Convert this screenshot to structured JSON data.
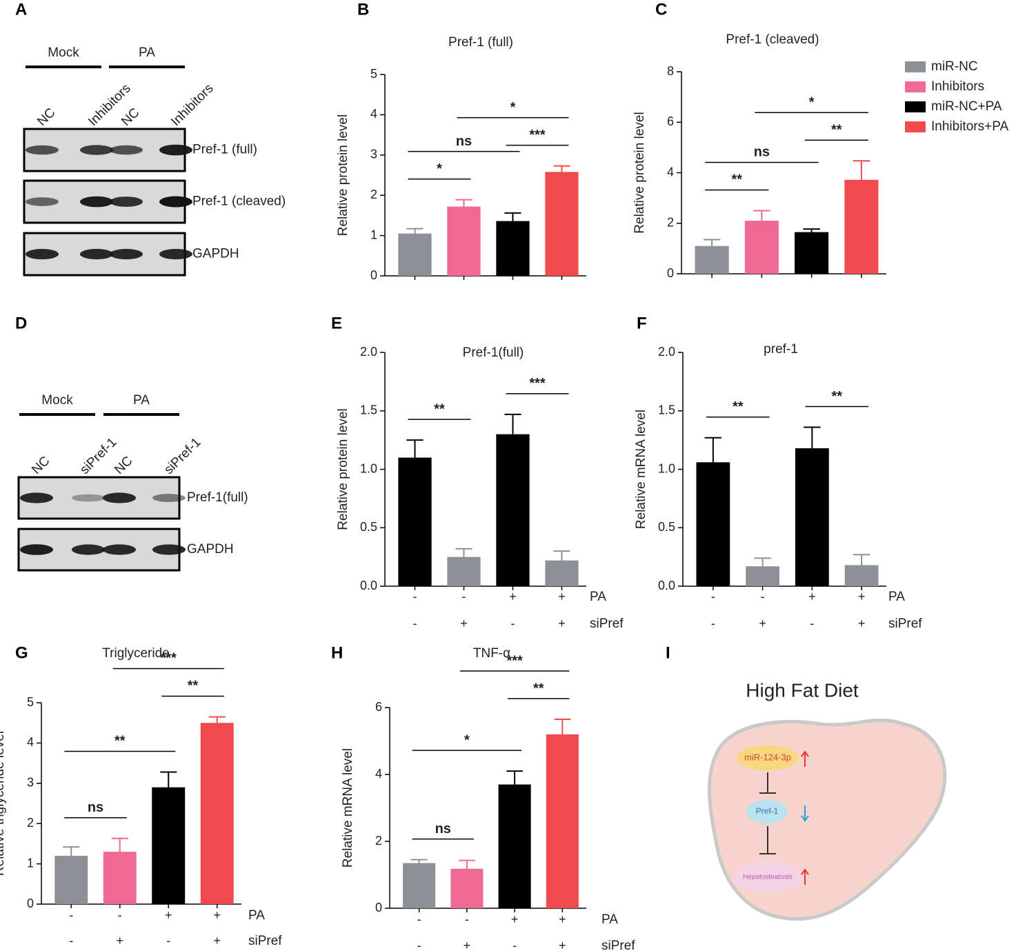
{
  "panels": [
    "A",
    "B",
    "C",
    "D",
    "E",
    "F",
    "G",
    "H",
    "I"
  ],
  "blots": [
    {
      "groups": [
        "Mock",
        "PA"
      ],
      "lanes": [
        "NC",
        "Inhibitors",
        "NC",
        "Inhibitors"
      ],
      "bands": [
        "Pref-1 (full)",
        "Pref-1 (cleaved)",
        "GAPDH"
      ]
    },
    {
      "groups": [
        "Mock",
        "PA"
      ],
      "lanes": [
        "NC",
        "siPref-1",
        "NC",
        "siPref-1"
      ],
      "bands": [
        "Pref-1(full)",
        "GAPDH"
      ]
    }
  ],
  "chart_data": [
    {
      "type": "bar",
      "title": "Pref-1 (full)",
      "ylabel": "Relative protein level",
      "categories": [
        null,
        null,
        null,
        null
      ],
      "values": [
        1.05,
        1.72,
        1.36,
        2.58
      ],
      "errors": [
        0.12,
        0.17,
        0.2,
        0.15
      ],
      "colors": [
        "#8e9097",
        "#ee6a93",
        "#000000",
        "#ef4b4f"
      ],
      "ylim": [
        0,
        5
      ],
      "yticks": [
        0,
        1,
        2,
        3,
        4,
        5
      ],
      "annotations": [
        {
          "text": "*",
          "bars": [
            0,
            1
          ]
        },
        {
          "text": "ns",
          "bars": [
            0,
            2
          ]
        },
        {
          "text": "***",
          "bars": [
            2,
            3
          ]
        },
        {
          "text": "*",
          "bars": [
            1,
            3
          ]
        }
      ]
    },
    {
      "type": "bar",
      "title": "Pref-1 (cleaved)",
      "ylabel": "Relative protein level",
      "categories": [
        null,
        null,
        null,
        null
      ],
      "values": [
        1.1,
        2.1,
        1.65,
        3.72
      ],
      "errors": [
        0.25,
        0.4,
        0.12,
        0.75
      ],
      "colors": [
        "#8e9097",
        "#ee6a93",
        "#000000",
        "#ef4b4f"
      ],
      "ylim": [
        0,
        8
      ],
      "yticks": [
        0,
        2,
        4,
        6,
        8
      ],
      "annotations": [
        {
          "text": "**",
          "bars": [
            0,
            1
          ]
        },
        {
          "text": "ns",
          "bars": [
            0,
            2
          ]
        },
        {
          "text": "**",
          "bars": [
            2,
            3
          ]
        },
        {
          "text": "*",
          "bars": [
            1,
            3
          ]
        }
      ],
      "legend": [
        {
          "name": "miR-NC",
          "color": "#8e9097"
        },
        {
          "name": "Inhibitors",
          "color": "#ee6a93"
        },
        {
          "name": "miR-NC+PA",
          "color": "#000000"
        },
        {
          "name": "Inhibitors+PA",
          "color": "#ef4b4f"
        }
      ]
    },
    {
      "type": "bar",
      "title": "Pref-1(full)",
      "ylabel": "Relative protein level",
      "categories": [
        null,
        null,
        null,
        null
      ],
      "values": [
        1.1,
        0.25,
        1.3,
        0.22
      ],
      "errors": [
        0.15,
        0.07,
        0.17,
        0.08
      ],
      "colors": [
        "#000000",
        "#8e9097",
        "#000000",
        "#8e9097"
      ],
      "ylim": [
        0,
        2
      ],
      "yticks": [
        {
          "value": 0,
          "label": "0.0"
        },
        0.5,
        {
          "value": 1,
          "label": "1.0"
        },
        1.5,
        {
          "value": 2,
          "label": "2.0"
        }
      ],
      "annotations": [
        {
          "text": "**",
          "bars": [
            0,
            1
          ]
        },
        {
          "text": "***",
          "bars": [
            2,
            3
          ]
        }
      ],
      "factors": [
        {
          "name": "PA",
          "levels": [
            "-",
            "-",
            "+",
            "+"
          ]
        },
        {
          "name": "siPref",
          "levels": [
            "-",
            "+",
            "-",
            "+"
          ]
        }
      ]
    },
    {
      "type": "bar",
      "title": "pref-1",
      "ylabel": "Relative mRNA level",
      "categories": [
        null,
        null,
        null,
        null
      ],
      "values": [
        1.06,
        0.17,
        1.18,
        0.18
      ],
      "errors": [
        0.21,
        0.07,
        0.18,
        0.09
      ],
      "colors": [
        "#000000",
        "#8e9097",
        "#000000",
        "#8e9097"
      ],
      "ylim": [
        0,
        2
      ],
      "yticks": [
        {
          "value": 0,
          "label": "0.0"
        },
        0.5,
        {
          "value": 1,
          "label": "1.0"
        },
        1.5,
        {
          "value": 2,
          "label": "2.0"
        }
      ],
      "annotations": [
        {
          "text": "**",
          "bars": [
            0,
            1
          ]
        },
        {
          "text": "**",
          "bars": [
            2,
            3
          ]
        }
      ],
      "factors": [
        {
          "name": "PA",
          "levels": [
            "-",
            "-",
            "+",
            "+"
          ]
        },
        {
          "name": "siPref",
          "levels": [
            "-",
            "+",
            "-",
            "+"
          ]
        }
      ]
    },
    {
      "type": "bar",
      "title": "Triglyceride",
      "ylabel": "Relative triglyceride level",
      "categories": [
        null,
        null,
        null,
        null
      ],
      "values": [
        1.2,
        1.3,
        2.9,
        4.5
      ],
      "errors": [
        0.22,
        0.33,
        0.38,
        0.15
      ],
      "colors": [
        "#8e9097",
        "#ee6a93",
        "#000000",
        "#ef4b4f"
      ],
      "ylim": [
        0,
        5
      ],
      "yticks": [
        0,
        1,
        2,
        3,
        4,
        5
      ],
      "annotations": [
        {
          "text": "ns",
          "bars": [
            0,
            1
          ]
        },
        {
          "text": "**",
          "bars": [
            0,
            2
          ]
        },
        {
          "text": "**",
          "bars": [
            2,
            3
          ]
        },
        {
          "text": "***",
          "bars": [
            1,
            3
          ]
        }
      ],
      "factors": [
        {
          "name": "PA",
          "levels": [
            "-",
            "-",
            "+",
            "+"
          ]
        },
        {
          "name": "siPref",
          "levels": [
            "-",
            "+",
            "-",
            "+"
          ]
        }
      ]
    },
    {
      "type": "bar",
      "title": "TNF-α",
      "ylabel": "Relative mRNA level",
      "categories": [
        null,
        null,
        null,
        null
      ],
      "values": [
        1.35,
        1.18,
        3.7,
        5.2
      ],
      "errors": [
        0.1,
        0.25,
        0.4,
        0.45
      ],
      "colors": [
        "#8e9097",
        "#ee6a93",
        "#000000",
        "#ef4b4f"
      ],
      "ylim": [
        0,
        6
      ],
      "yticks": [
        0,
        2,
        4,
        6
      ],
      "annotations": [
        {
          "text": "ns",
          "bars": [
            0,
            1
          ]
        },
        {
          "text": "*",
          "bars": [
            0,
            2
          ]
        },
        {
          "text": "**",
          "bars": [
            2,
            3
          ]
        },
        {
          "text": "***",
          "bars": [
            1,
            3
          ]
        }
      ],
      "factors": [
        {
          "name": "PA",
          "levels": [
            "-",
            "-",
            "+",
            "+"
          ]
        },
        {
          "name": "siPref",
          "levels": [
            "-",
            "+",
            "-",
            "+"
          ]
        }
      ]
    }
  ],
  "diagram": {
    "title": "High Fat Diet",
    "nodes": [
      "miR-124-3p",
      "Pref-1",
      "Hepatosteatosis"
    ]
  }
}
